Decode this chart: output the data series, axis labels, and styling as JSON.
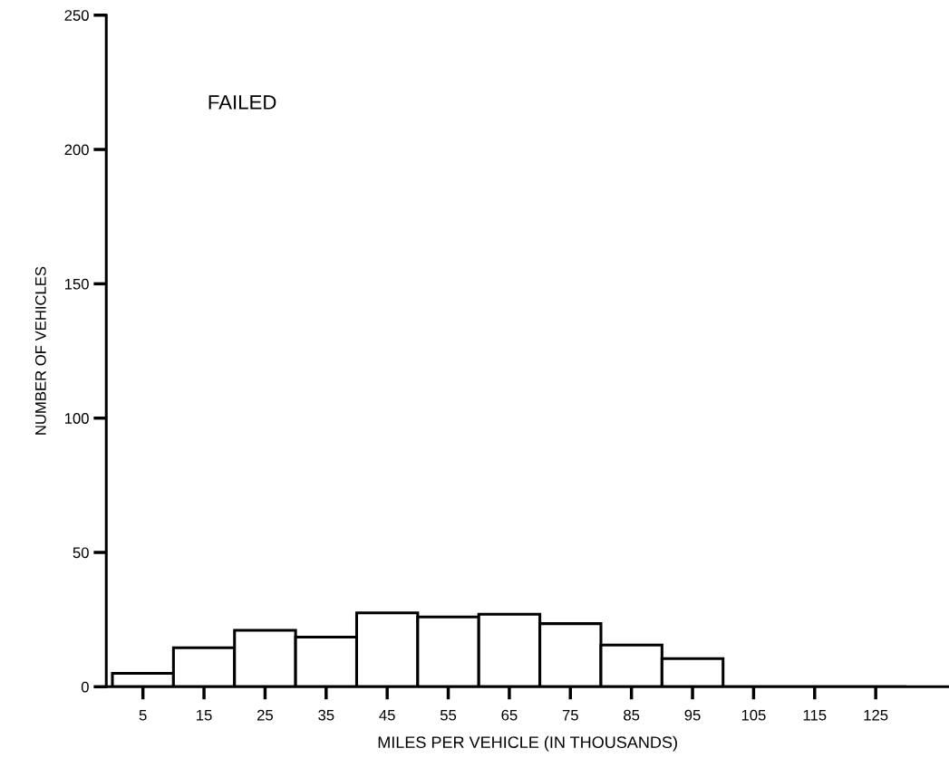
{
  "chart_data": {
    "type": "histogram",
    "bins": [
      0,
      10,
      20,
      30,
      40,
      50,
      60,
      70,
      80,
      90,
      100,
      110,
      120,
      130
    ],
    "values": [
      5,
      14.5,
      21,
      18.5,
      27.5,
      26,
      27,
      23.5,
      15.5,
      10.5,
      0,
      0,
      0
    ],
    "color": "#ffffff",
    "xlabel": "MILES PER VEHICLE (IN THOUSANDS)",
    "ylabel": "NUMBER OF VEHICLES",
    "annotations": [
      {
        "text": "FAILED"
      }
    ],
    "xlim": [
      -1,
      137
    ],
    "xticks": [
      5,
      15,
      25,
      35,
      45,
      55,
      65,
      75,
      85,
      95,
      105,
      115,
      125
    ],
    "ylim": [
      0,
      250
    ],
    "yticks": [
      0,
      50,
      100,
      150,
      200,
      250
    ],
    "grid": false
  }
}
